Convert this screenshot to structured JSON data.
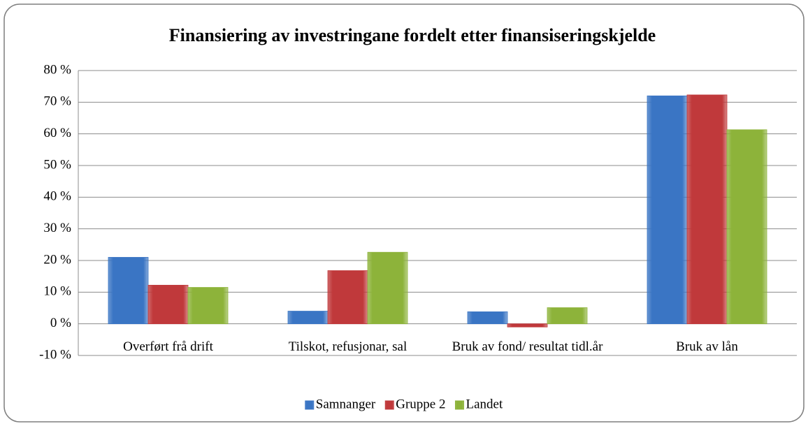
{
  "chart_data": {
    "type": "bar",
    "title": "Finansiering av investringane fordelt etter finansiseringskjelde",
    "categories": [
      "Overført frå drift",
      "Tilskot, refusjonar, sal",
      "Bruk av fond/ resultat tidl.år",
      "Bruk av lån"
    ],
    "series": [
      {
        "name": "Samnanger",
        "color": "#3a75c4",
        "values": [
          21,
          4,
          3.8,
          72
        ]
      },
      {
        "name": "Gruppe 2",
        "color": "#c0393b",
        "values": [
          12.2,
          16.8,
          -1,
          72.3
        ]
      },
      {
        "name": "Landet",
        "color": "#8db33a",
        "values": [
          11.5,
          22.6,
          5.1,
          61.3
        ]
      }
    ],
    "ylim": [
      -10,
      80
    ],
    "yticks": [
      {
        "value": -10,
        "label": "-10 %"
      },
      {
        "value": 0,
        "label": "0 %"
      },
      {
        "value": 10,
        "label": "10 %"
      },
      {
        "value": 20,
        "label": "20 %"
      },
      {
        "value": 30,
        "label": "30 %"
      },
      {
        "value": 40,
        "label": "40 %"
      },
      {
        "value": 50,
        "label": "50 %"
      },
      {
        "value": 60,
        "label": "60 %"
      },
      {
        "value": 70,
        "label": "70 %"
      },
      {
        "value": 80,
        "label": "80 %"
      }
    ],
    "grid": true,
    "legend": "bottom"
  }
}
